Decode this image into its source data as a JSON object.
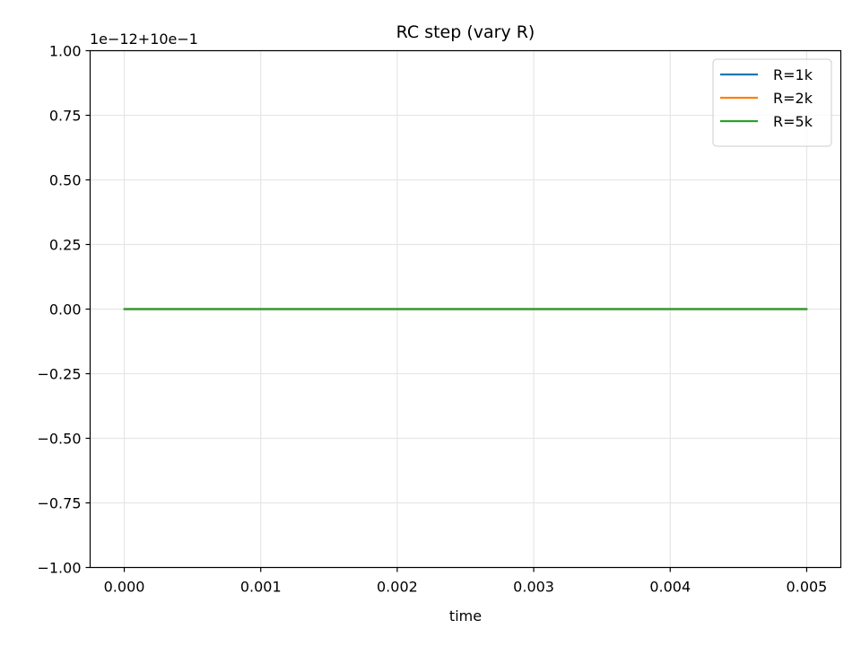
{
  "chart_data": {
    "type": "line",
    "title": "RC step (vary R)",
    "xlabel": "time",
    "ylabel": "",
    "y_offset_text": "1e−12+10e−1",
    "x_ticks": [
      "0.000",
      "0.001",
      "0.002",
      "0.003",
      "0.004",
      "0.005"
    ],
    "x_tick_values": [
      0.0,
      0.001,
      0.002,
      0.003,
      0.004,
      0.005
    ],
    "y_ticks": [
      "−1.00",
      "−0.75",
      "−0.50",
      "−0.25",
      "0.00",
      "0.25",
      "0.50",
      "0.75",
      "1.00"
    ],
    "y_tick_values": [
      -1.0,
      -0.75,
      -0.5,
      -0.25,
      0.0,
      0.25,
      0.5,
      0.75,
      1.0
    ],
    "xlim": [
      -0.00025,
      0.00525
    ],
    "ylim": [
      -1.0,
      1.0
    ],
    "grid": true,
    "legend_position": "top-right",
    "series": [
      {
        "name": "R=1k",
        "color": "#1f77b4",
        "x": [
          0.0,
          0.005
        ],
        "y": [
          0.0,
          0.0
        ]
      },
      {
        "name": "R=2k",
        "color": "#ff7f0e",
        "x": [
          0.0,
          0.005
        ],
        "y": [
          0.0,
          0.0
        ]
      },
      {
        "name": "R=5k",
        "color": "#2ca02c",
        "x": [
          0.0,
          0.005
        ],
        "y": [
          0.0,
          0.0
        ]
      }
    ]
  }
}
